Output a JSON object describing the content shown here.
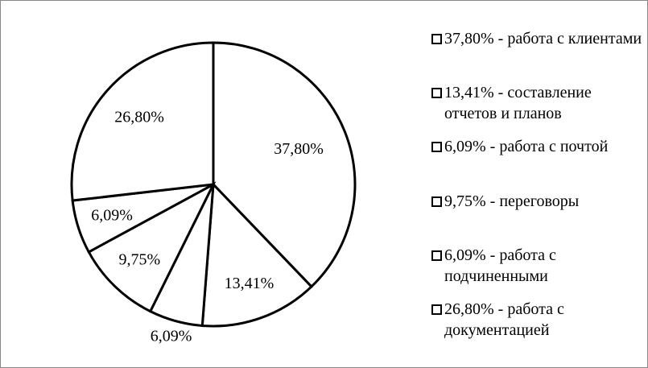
{
  "chart_data": {
    "type": "pie",
    "categories": [
      "37,80% - работа с клиентами",
      "13,41% - составление отчетов и планов",
      "6,09% - работа с почтой",
      "9,75% - переговоры",
      "6,09% - работа с подчиненными",
      "26,80% - работа с документацией"
    ],
    "values": [
      37.8,
      13.41,
      6.09,
      9.75,
      6.09,
      26.8
    ],
    "value_labels": [
      "37,80%",
      "13,41%",
      "6,09%",
      "9,75%",
      "6,09%",
      "26,80%"
    ],
    "color": "#ffffff",
    "edge_color": "#000000",
    "legend": "right"
  }
}
